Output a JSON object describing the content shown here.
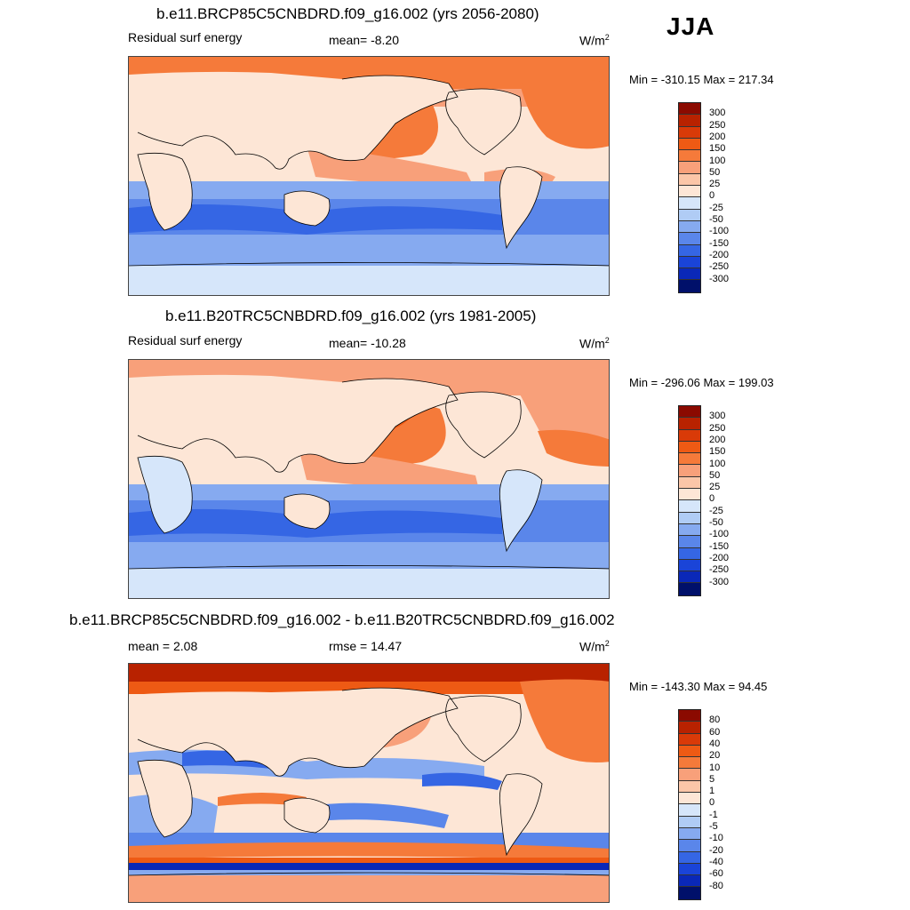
{
  "season": "JJA",
  "units_base": "W/m",
  "units_exp": "2",
  "panels": [
    {
      "title": "b.e11.BRCP85C5CNBDRD.f09_g16.002 (yrs 2056-2080)",
      "left_label": "Residual surf energy",
      "center_label": "mean=  -8.20",
      "minmax": "Min = -310.15 Max = 217.34"
    },
    {
      "title": "b.e11.B20TRC5CNBDRD.f09_g16.002 (yrs 1981-2005)",
      "left_label": "Residual surf energy",
      "center_label": "mean= -10.28",
      "minmax": "Min = -296.06 Max = 199.03"
    },
    {
      "title": "b.e11.BRCP85C5CNBDRD.f09_g16.002 - b.e11.B20TRC5CNBDRD.f09_g16.002",
      "left_label": "mean =   2.08",
      "center_label": "rmse =  14.47",
      "minmax": "Min = -143.30 Max =  94.45"
    }
  ],
  "colorbars": {
    "main": {
      "labels": [
        "300",
        "250",
        "200",
        "150",
        "100",
        "50",
        "25",
        "0",
        "-25",
        "-50",
        "-100",
        "-150",
        "-200",
        "-250",
        "-300"
      ],
      "colors": [
        "#8b0a00",
        "#b82200",
        "#d93a08",
        "#ee5a14",
        "#f57a3a",
        "#f8a07a",
        "#fbc6a8",
        "#fde6d6",
        "#d6e6fa",
        "#b0ccf5",
        "#86aaf0",
        "#5a86ea",
        "#3566e4",
        "#1a44d8",
        "#0a28b8",
        "#00106a"
      ]
    },
    "diff": {
      "labels": [
        "80",
        "60",
        "40",
        "20",
        "10",
        "5",
        "1",
        "0",
        "-1",
        "-5",
        "-10",
        "-20",
        "-40",
        "-60",
        "-80"
      ],
      "colors": [
        "#8b0a00",
        "#b82200",
        "#d93a08",
        "#ee5a14",
        "#f57a3a",
        "#f8a07a",
        "#fbc6a8",
        "#fde6d6",
        "#d6e6fa",
        "#b0ccf5",
        "#86aaf0",
        "#5a86ea",
        "#3566e4",
        "#1a44d8",
        "#0a28b8",
        "#00106a"
      ]
    }
  },
  "map_palette": {
    "land": "#fde6d6",
    "antarctica": "#d6e6fa",
    "warm_1": "#f8a07a",
    "warm_2": "#f57a3a",
    "warm_3": "#ee5a14",
    "cool_1": "#86aaf0",
    "cool_2": "#5a86ea",
    "cool_3": "#3566e4",
    "dark_red": "#b82200",
    "dark_blue": "#0a28b8",
    "coast": "#000000"
  }
}
